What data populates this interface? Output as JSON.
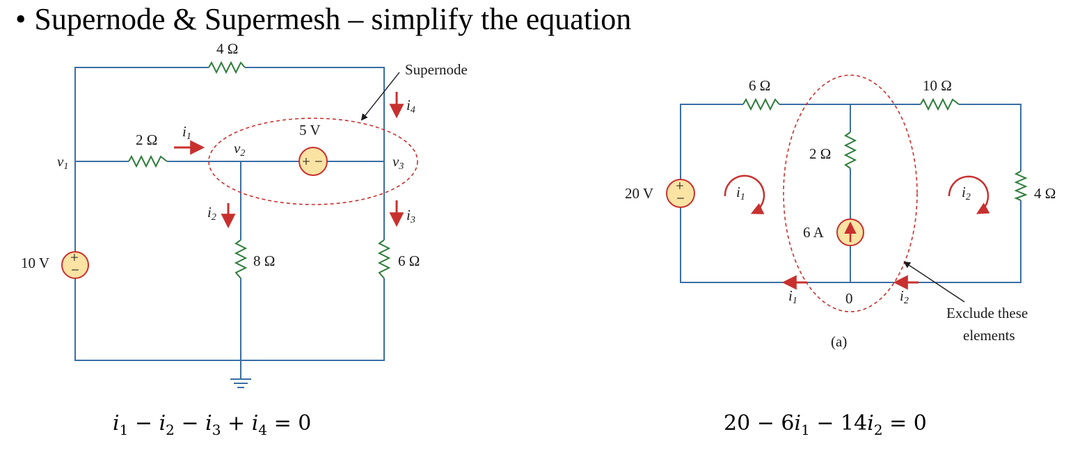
{
  "title": {
    "bullet": "•",
    "text": "Supernode  & Supermesh – simplify the equation"
  },
  "colors": {
    "wire": "#3a6ea5",
    "resistor": "#2e7d3a",
    "source_fill": "#fbe3a3",
    "source_stroke": "#c8302e",
    "arrow": "#c8302e",
    "dashed": "#c8302e",
    "text": "#1a1a1a"
  },
  "left_circuit": {
    "r_top": "4 Ω",
    "r_left": "2 Ω",
    "r_mid": "8 Ω",
    "r_right": "6 Ω",
    "vsrc_left": "10 V",
    "vsrc_mid": "5 V",
    "supernode_label": "Supernode",
    "node_v1": "v",
    "node_v1_sub": "1",
    "node_v2": "v",
    "node_v2_sub": "2",
    "node_v3": "v",
    "node_v3_sub": "3",
    "cur_i1": "i",
    "cur_i1_sub": "1",
    "cur_i2": "i",
    "cur_i2_sub": "2",
    "cur_i3": "i",
    "cur_i3_sub": "3",
    "cur_i4": "i",
    "cur_i4_sub": "4",
    "plus": "+",
    "minus": "−"
  },
  "right_circuit": {
    "r_6": "6 Ω",
    "r_10": "10 Ω",
    "r_2": "2 Ω",
    "r_4": "4 Ω",
    "vsrc": "20 V",
    "isrc": "6 A",
    "mesh_i1": "i",
    "mesh_i1_sub": "1",
    "mesh_i2": "i",
    "mesh_i2_sub": "2",
    "bottom_i1": "i",
    "bottom_i1_sub": "1",
    "bottom_i2": "i",
    "bottom_i2_sub": "2",
    "node_zero": "0",
    "caption": "(a)",
    "exclude_line1": "Exclude these",
    "exclude_line2": "elements",
    "plus": "+",
    "minus": "−"
  },
  "equations": {
    "left": {
      "t1": "i",
      "s1": "1",
      "op1": " − ",
      "t2": "i",
      "s2": "2",
      "op2": " − ",
      "t3": "i",
      "s3": "3",
      "op3": " + ",
      "t4": "i",
      "s4": "4",
      "rhs": " = 0"
    },
    "right": {
      "c0": "20 − 6",
      "t1": "i",
      "s1": "1",
      "op1": " − 14",
      "t2": "i",
      "s2": "2",
      "rhs": " = 0"
    }
  }
}
